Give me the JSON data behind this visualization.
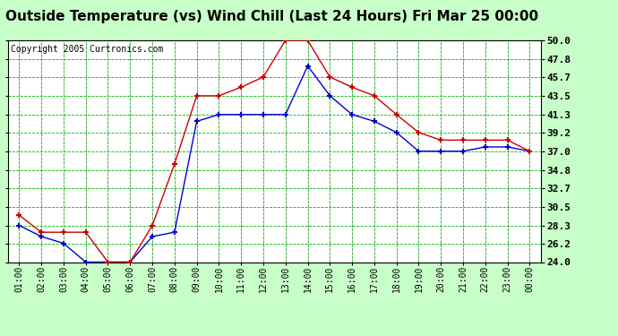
{
  "title": "Outside Temperature (vs) Wind Chill (Last 24 Hours) Fri Mar 25 00:00",
  "copyright": "Copyright 2005 Curtronics.com",
  "x_labels": [
    "01:00",
    "02:00",
    "03:00",
    "04:00",
    "05:00",
    "06:00",
    "07:00",
    "08:00",
    "09:00",
    "10:00",
    "11:00",
    "12:00",
    "13:00",
    "14:00",
    "15:00",
    "16:00",
    "17:00",
    "18:00",
    "19:00",
    "20:00",
    "21:00",
    "22:00",
    "23:00",
    "00:00"
  ],
  "outside_temp": [
    28.3,
    27.0,
    26.2,
    24.0,
    24.0,
    24.0,
    27.0,
    27.5,
    40.5,
    41.3,
    41.3,
    41.3,
    41.3,
    47.0,
    43.5,
    41.3,
    40.5,
    39.2,
    37.0,
    37.0,
    37.0,
    37.5,
    37.5,
    37.0
  ],
  "wind_chill": [
    29.5,
    27.5,
    27.5,
    27.5,
    24.0,
    24.0,
    28.3,
    35.5,
    43.5,
    43.5,
    44.5,
    45.7,
    50.0,
    50.0,
    45.7,
    44.5,
    43.5,
    41.3,
    39.2,
    38.3,
    38.3,
    38.3,
    38.3,
    37.0
  ],
  "ylim": [
    24.0,
    50.0
  ],
  "yticks": [
    24.0,
    26.2,
    28.3,
    30.5,
    32.7,
    34.8,
    37.0,
    39.2,
    41.3,
    43.5,
    45.7,
    47.8,
    50.0
  ],
  "bg_color": "#c8ffc8",
  "plot_bg": "#ffffff",
  "grid_color": "#00bb00",
  "outside_color": "#0000cc",
  "windchill_color": "#cc0000",
  "title_fontsize": 11,
  "copyright_fontsize": 7
}
